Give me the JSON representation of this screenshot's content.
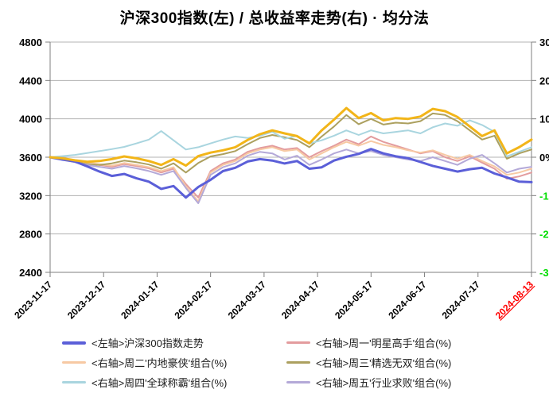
{
  "title": "沪深300指数(左) / 总收益率走势(右) · 均分法",
  "chart_data": {
    "type": "line",
    "title": "沪深300指数(左) / 总收益率走势(右) · 均分法",
    "left_axis": {
      "min": 2400,
      "max": 4800,
      "ticks": [
        4800,
        4400,
        4000,
        3600,
        3200,
        2800,
        2400
      ],
      "label_color": "#000000"
    },
    "right_axis": {
      "min": -30,
      "max": 30,
      "ticks": [
        {
          "v": 30,
          "label": "30%",
          "color": "#000000"
        },
        {
          "v": 20,
          "label": "20%",
          "color": "#000000"
        },
        {
          "v": 10,
          "label": "10%",
          "color": "#000000"
        },
        {
          "v": 0,
          "label": "0%",
          "color": "#000000"
        },
        {
          "v": -10,
          "label": "-10%",
          "color": "#00dd00"
        },
        {
          "v": -20,
          "label": "-20%",
          "color": "#00dd00"
        },
        {
          "v": -30,
          "label": "-30%",
          "color": "#00dd00"
        }
      ]
    },
    "x_ticks": [
      {
        "label": "2023-11-17",
        "color": "#000000"
      },
      {
        "label": "2023-12-17",
        "color": "#000000"
      },
      {
        "label": "2024-01-17",
        "color": "#000000"
      },
      {
        "label": "2024-02-17",
        "color": "#000000"
      },
      {
        "label": "2024-03-17",
        "color": "#000000"
      },
      {
        "label": "2024-04-17",
        "color": "#000000"
      },
      {
        "label": "2024-05-17",
        "color": "#000000"
      },
      {
        "label": "2024-06-17",
        "color": "#000000"
      },
      {
        "label": "2024-07-17",
        "color": "#000000"
      },
      {
        "label": "2024-08-13",
        "color": "#ff0000",
        "underline": true
      }
    ],
    "grid": true,
    "legend_position": "bottom",
    "colors": {
      "grid": "#b3b3b3",
      "axis": "#7f7f7f",
      "negative_tick_text": "#00dd00",
      "last_x_label": "#ff0000"
    },
    "series": [
      {
        "id": "mon",
        "name": "<右轴>周一'明星高手'组合(%)",
        "axis": "right",
        "color": "#e39c9e",
        "width": 2,
        "in_legend": true,
        "values": [
          0,
          -0.5,
          -1.0,
          -1.6,
          -2.0,
          -2.5,
          -1.8,
          -2.3,
          -2.9,
          -4.0,
          -3.0,
          -7.0,
          -10.5,
          -3.6,
          -1.6,
          -0.6,
          1.4,
          2.4,
          3.0,
          2.0,
          2.4,
          0.0,
          1.6,
          3.0,
          4.6,
          3.4,
          5.4,
          4.0,
          3.0,
          2.0,
          1.0,
          1.6,
          0.0,
          -1.0,
          0.2,
          -1.4,
          -3.0,
          -5.6,
          -5.0,
          -4.0
        ]
      },
      {
        "id": "tue",
        "name": "<右轴>周二'内地豪侠'组合(%)",
        "axis": "right",
        "color": "#f7c9a3",
        "width": 2,
        "in_legend": true,
        "values": [
          0,
          -0.4,
          -0.9,
          -1.4,
          -1.8,
          -2.2,
          -1.5,
          -2.0,
          -2.6,
          -3.6,
          -2.6,
          -7.6,
          -11.5,
          -4.0,
          -2.0,
          -1.0,
          1.0,
          2.0,
          2.6,
          1.6,
          2.0,
          -0.6,
          1.0,
          2.6,
          4.0,
          3.0,
          4.2,
          3.2,
          2.6,
          1.8,
          1.2,
          1.8,
          0.6,
          -0.4,
          0.6,
          -1.0,
          -2.4,
          -4.6,
          -4.0,
          -3.0
        ]
      },
      {
        "id": "wed",
        "name": "<右轴>周三'精选无双'组合(%)",
        "axis": "right",
        "color": "#aca05f",
        "width": 2,
        "in_legend": true,
        "values": [
          0,
          -0.5,
          -1.2,
          -1.8,
          -2.0,
          -1.6,
          -0.9,
          -1.3,
          -1.9,
          -3.0,
          -1.6,
          -4.0,
          -1.5,
          0.2,
          0.8,
          1.6,
          3.4,
          5.0,
          5.8,
          5.2,
          4.5,
          2.6,
          5.4,
          8.0,
          11.0,
          8.6,
          10.0,
          8.5,
          9.0,
          8.8,
          9.4,
          11.4,
          11.0,
          9.4,
          7.0,
          4.6,
          5.6,
          -0.4,
          1.0,
          2.0
        ]
      },
      {
        "id": "thu",
        "name": "<右轴>周四'全球称霸'组合(%)",
        "axis": "right",
        "color": "#a9d5df",
        "width": 2,
        "in_legend": true,
        "values": [
          0,
          0.3,
          0.6,
          1.1,
          1.6,
          2.1,
          2.7,
          3.6,
          4.6,
          6.8,
          4.4,
          2.0,
          2.6,
          3.6,
          4.6,
          5.4,
          5.0,
          5.6,
          6.6,
          4.8,
          5.6,
          3.6,
          4.4,
          5.6,
          7.0,
          5.8,
          7.0,
          6.2,
          6.6,
          7.0,
          6.2,
          7.8,
          8.8,
          8.2,
          9.6,
          8.4,
          6.6,
          0.2,
          1.4,
          2.6
        ]
      },
      {
        "id": "fri",
        "name": "<右轴>周五'行业求败'组合(%)",
        "axis": "right",
        "color": "#b4a9d8",
        "width": 2,
        "in_legend": true,
        "values": [
          0,
          -0.6,
          -1.3,
          -2.0,
          -2.5,
          -3.0,
          -2.3,
          -2.9,
          -3.6,
          -4.6,
          -3.6,
          -8.0,
          -12.0,
          -4.6,
          -2.6,
          -1.6,
          0.4,
          1.4,
          1.0,
          -0.6,
          0.4,
          -2.0,
          -0.6,
          1.0,
          2.0,
          1.0,
          1.6,
          0.6,
          0.0,
          -0.6,
          -1.0,
          0.0,
          -1.0,
          -2.0,
          -0.4,
          0.6,
          -1.6,
          -4.0,
          -3.0,
          -2.5
        ]
      },
      {
        "id": "csi300",
        "name": "<左轴>沪深300指数走势",
        "axis": "left",
        "color": "#5b5fd8",
        "width": 3,
        "in_legend": true,
        "values": [
          3600,
          3575,
          3555,
          3505,
          3450,
          3405,
          3425,
          3380,
          3345,
          3270,
          3300,
          3180,
          3290,
          3365,
          3455,
          3490,
          3555,
          3580,
          3565,
          3535,
          3560,
          3480,
          3495,
          3565,
          3605,
          3635,
          3685,
          3640,
          3610,
          3590,
          3550,
          3510,
          3480,
          3450,
          3475,
          3490,
          3430,
          3390,
          3345,
          3340
        ]
      },
      {
        "id": "gold-unlabeled",
        "name": "",
        "axis": "right",
        "color": "#f2b519",
        "width": 3,
        "in_legend": false,
        "values": [
          0,
          -0.3,
          -0.8,
          -1.2,
          -1.0,
          -0.5,
          0.2,
          -0.3,
          -1.0,
          -2.0,
          -0.5,
          -2.2,
          0.3,
          1.2,
          1.8,
          2.6,
          4.5,
          6.0,
          7.0,
          6.2,
          5.5,
          3.6,
          7.0,
          9.8,
          12.8,
          10.2,
          11.5,
          9.6,
          10.2,
          10.0,
          10.6,
          12.6,
          12.0,
          10.5,
          8.0,
          5.5,
          7.0,
          1.0,
          2.6,
          4.6
        ]
      }
    ],
    "legend": {
      "entries": [
        {
          "label": "<左轴>沪深300指数走势",
          "series_id": "csi300",
          "swatch_height": 4
        },
        {
          "label": "<右轴>周一'明星高手'组合(%)",
          "series_id": "mon",
          "swatch_height": 3
        },
        {
          "label": "<右轴>周二'内地豪侠'组合(%)",
          "series_id": "tue",
          "swatch_height": 3
        },
        {
          "label": "<右轴>周三'精选无双'组合(%)",
          "series_id": "wed",
          "swatch_height": 3
        },
        {
          "label": "<右轴>周四'全球称霸'组合(%)",
          "series_id": "thu",
          "swatch_height": 3
        },
        {
          "label": "<右轴>周五'行业求败'组合(%)",
          "series_id": "fri",
          "swatch_height": 3
        }
      ]
    }
  }
}
